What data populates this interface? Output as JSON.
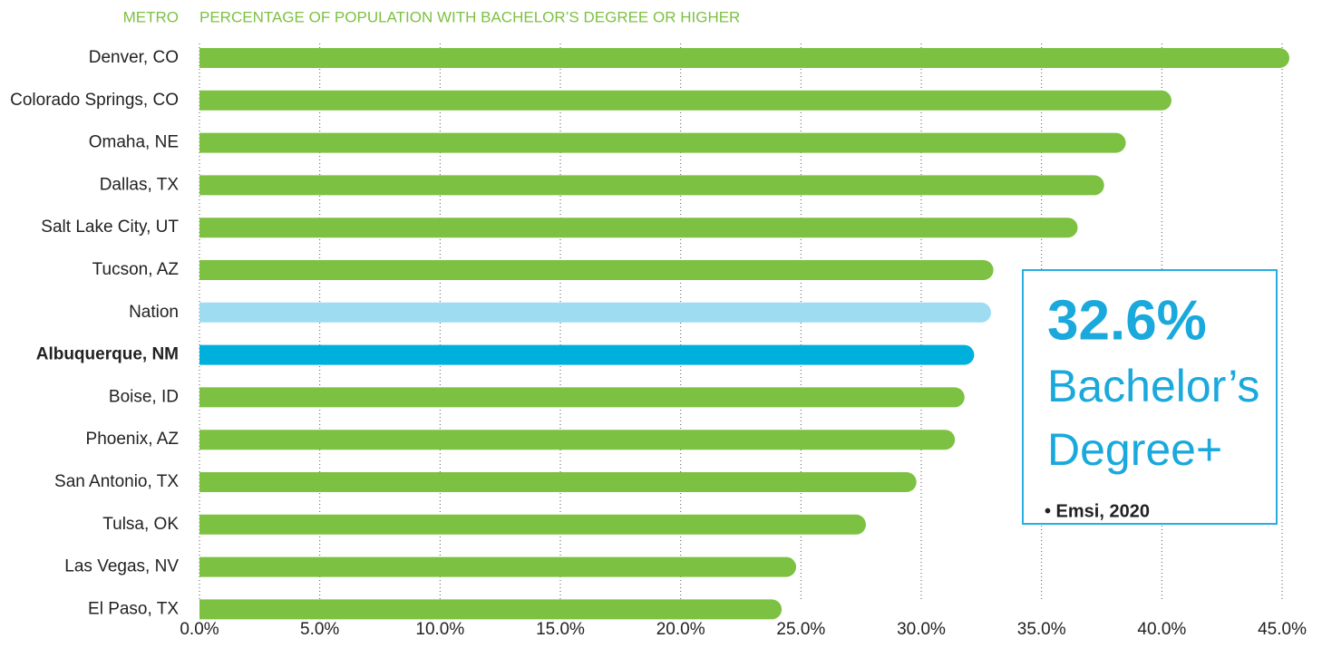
{
  "chart_data": {
    "type": "barh",
    "category_header": "METRO",
    "title": "PERCENTAGE OF POPULATION WITH BACHELOR’S DEGREE OR HIGHER",
    "categories": [
      "Denver, CO",
      "Colorado Springs, CO",
      "Omaha, NE",
      "Dallas, TX",
      "Salt Lake City, UT",
      "Tucson, AZ",
      "Nation",
      "Albuquerque, NM",
      "Boise, ID",
      "Phoenix, AZ",
      "San Antonio, TX",
      "Tulsa, OK",
      "Las Vegas, NV",
      "El Paso, TX"
    ],
    "values": [
      45.3,
      40.4,
      38.5,
      37.6,
      36.5,
      33.0,
      32.9,
      32.2,
      31.8,
      31.4,
      29.8,
      27.7,
      24.8,
      24.2
    ],
    "colors": [
      "#7dc142",
      "#7dc142",
      "#7dc142",
      "#7dc142",
      "#7dc142",
      "#7dc142",
      "#9edcf2",
      "#00b0dc",
      "#7dc142",
      "#7dc142",
      "#7dc142",
      "#7dc142",
      "#7dc142",
      "#7dc142"
    ],
    "highlight_category": "Albuquerque, NM",
    "xlim": [
      0,
      45.3
    ],
    "xticks": [
      {
        "value": 0,
        "label": "0.0%"
      },
      {
        "value": 5,
        "label": "5.0%"
      },
      {
        "value": 10,
        "label": "10.0%"
      },
      {
        "value": 15,
        "label": "15.0%"
      },
      {
        "value": 20,
        "label": "20.0%"
      },
      {
        "value": 25,
        "label": "25.0%"
      },
      {
        "value": 30,
        "label": "30.0%"
      },
      {
        "value": 35,
        "label": "35.0%"
      },
      {
        "value": 40,
        "label": "40.0%"
      },
      {
        "value": 45,
        "label": "45.0%"
      }
    ],
    "grid": true,
    "annotation": {
      "value": "32.6%",
      "line1": "Bachelor’s",
      "line2": "Degree+",
      "source": "• Emsi, 2020"
    }
  }
}
